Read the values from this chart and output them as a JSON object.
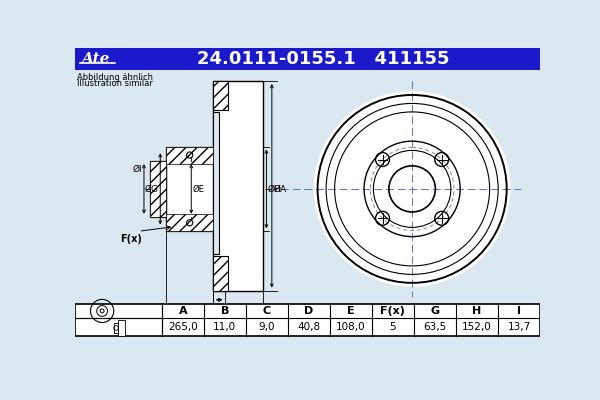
{
  "title_text": "24.0111-0155.1   411155",
  "title_bg": "#1a1acc",
  "title_fg": "#ffffff",
  "note_line1": "Abbildung ähnlich",
  "note_line2": "Illustration similar",
  "table_headers": [
    "A",
    "B",
    "C",
    "D",
    "E",
    "F(x)",
    "G",
    "H",
    "I"
  ],
  "table_values": [
    "265,0",
    "11,0",
    "9,0",
    "40,8",
    "108,0",
    "5",
    "63,5",
    "152,0",
    "13,7"
  ],
  "bg_color": "#dce8f0",
  "white": "#ffffff",
  "black": "#000000",
  "center_line_color": "#5577bb"
}
